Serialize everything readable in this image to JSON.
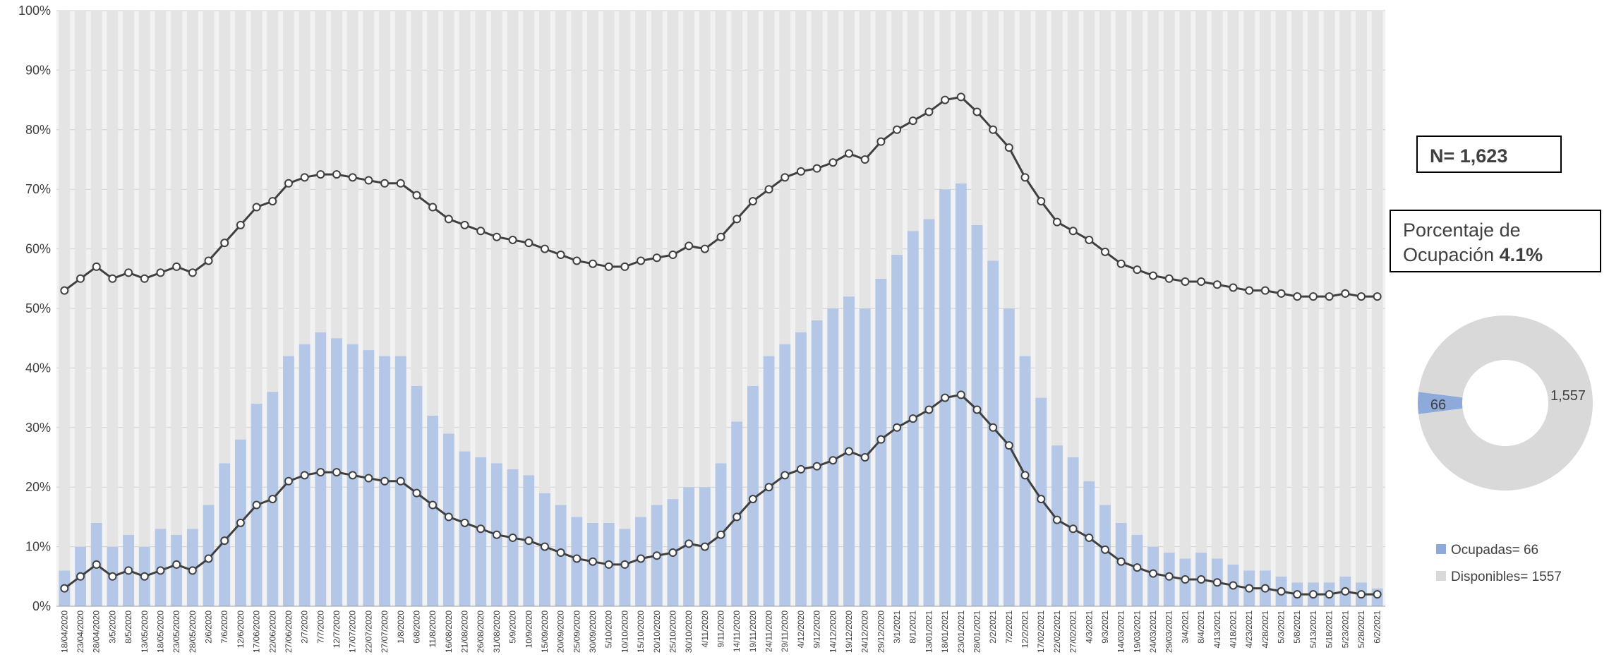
{
  "chart_data": [
    {
      "type": "bar",
      "stacked": true,
      "grid": true,
      "categories": [
        "18/04/2020",
        "23/04/2020",
        "28/04/2020",
        "3/5/2020",
        "8/5/2020",
        "13/05/2020",
        "18/05/2020",
        "23/05/2020",
        "28/05/2020",
        "2/6/2020",
        "7/6/2020",
        "12/6/2020",
        "17/06/2020",
        "22/06/2020",
        "27/06/2020",
        "2/7/2020",
        "7/7/2020",
        "12/7/2020",
        "17/07/2020",
        "22/07/2020",
        "27/07/2020",
        "1/8/2020",
        "6/8/2020",
        "11/8/2020",
        "16/08/2020",
        "21/08/2020",
        "26/08/2020",
        "31/08/2020",
        "5/9/2020",
        "10/9/2020",
        "15/09/2020",
        "20/09/2020",
        "25/09/2020",
        "30/09/2020",
        "5/10/2020",
        "10/10/2020",
        "15/10/2020",
        "20/10/2020",
        "25/10/2020",
        "30/10/2020",
        "4/11/2020",
        "9/11/2020",
        "14/11/2020",
        "19/11/2020",
        "24/11/2020",
        "29/11/2020",
        "4/12/2020",
        "9/12/2020",
        "14/12/2020",
        "19/12/2020",
        "24/12/2020",
        "29/12/2020",
        "3/1/2021",
        "8/1/2021",
        "13/01/2021",
        "18/01/2021",
        "23/01/2021",
        "28/01/2021",
        "2/2/2021",
        "7/2/2021",
        "12/2/2021",
        "17/02/2021",
        "22/02/2021",
        "27/02/2021",
        "4/3/2021",
        "9/3/2021",
        "14/03/2021",
        "19/03/2021",
        "24/03/2021",
        "29/03/2021",
        "3/4/2021",
        "8/4/2021",
        "4/13/2021",
        "4/18/2021",
        "4/23/2021",
        "4/28/2021",
        "5/3/2021",
        "5/8/2021",
        "5/13/2021",
        "5/18/2021",
        "5/23/2021",
        "5/28/2021",
        "6/2/2021"
      ],
      "series": [
        {
          "color": "#b4c7e7",
          "values": [
            6,
            10,
            14,
            10,
            12,
            10,
            13,
            12,
            13,
            17,
            24,
            28,
            34,
            36,
            42,
            44,
            46,
            45,
            44,
            43,
            42,
            42,
            37,
            32,
            29,
            26,
            25,
            24,
            23,
            22,
            19,
            17,
            15,
            14,
            14,
            13,
            15,
            17,
            18,
            20,
            20,
            24,
            31,
            37,
            42,
            44,
            46,
            48,
            50,
            52,
            50,
            55,
            59,
            63,
            65,
            70,
            71,
            64,
            58,
            50,
            42,
            35,
            27,
            25,
            21,
            17,
            14,
            12,
            10,
            9,
            8,
            9,
            8,
            7,
            6,
            6,
            5,
            4,
            4,
            4,
            5,
            4,
            3
          ]
        },
        {
          "color": "#e4e4e4",
          "values": [
            94,
            90,
            86,
            90,
            88,
            90,
            87,
            88,
            87,
            83,
            76,
            72,
            66,
            64,
            58,
            56,
            54,
            55,
            56,
            57,
            58,
            58,
            63,
            68,
            71,
            74,
            75,
            76,
            77,
            78,
            81,
            83,
            85,
            86,
            86,
            87,
            85,
            83,
            82,
            80,
            80,
            76,
            69,
            63,
            58,
            56,
            54,
            52,
            50,
            48,
            50,
            45,
            41,
            37,
            35,
            30,
            29,
            36,
            42,
            50,
            58,
            65,
            73,
            75,
            79,
            83,
            86,
            88,
            90,
            91,
            92,
            91,
            92,
            93,
            94,
            94,
            95,
            96,
            96,
            96,
            95,
            96,
            97
          ]
        }
      ],
      "lines": [
        {
          "color": "#404040",
          "values": [
            53,
            55,
            57,
            55,
            56,
            55,
            56,
            57,
            56,
            58,
            61,
            64,
            67,
            68,
            71,
            72,
            72.5,
            72.5,
            72,
            71.5,
            71,
            71,
            69,
            67,
            65,
            64,
            63,
            62,
            61.5,
            61,
            60,
            59,
            58,
            57.5,
            57,
            57,
            58,
            58.5,
            59,
            60.5,
            60,
            62,
            65,
            68,
            70,
            72,
            73,
            73.5,
            74.5,
            76,
            75,
            78,
            80,
            81.5,
            83,
            85,
            85.5,
            83,
            80,
            77,
            72,
            68,
            64.5,
            63,
            61.5,
            59.5,
            57.5,
            56.5,
            55.5,
            55,
            54.5,
            54.5,
            54,
            53.5,
            53,
            53,
            52.5,
            52,
            52,
            52,
            52.5,
            52,
            52
          ]
        },
        {
          "color": "#404040",
          "values": [
            3,
            5,
            7,
            5,
            6,
            5,
            6,
            7,
            6,
            8,
            11,
            14,
            17,
            18,
            21,
            22,
            22.5,
            22.5,
            22,
            21.5,
            21,
            21,
            19,
            17,
            15,
            14,
            13,
            12,
            11.5,
            11,
            10,
            9,
            8,
            7.5,
            7,
            7,
            8,
            8.5,
            9,
            10.5,
            10,
            12,
            15,
            18,
            20,
            22,
            23,
            23.5,
            24.5,
            26,
            25,
            28,
            30,
            31.5,
            33,
            35,
            35.5,
            33,
            30,
            27,
            22,
            18,
            14.5,
            13,
            11.5,
            9.5,
            7.5,
            6.5,
            5.5,
            5,
            4.5,
            4.5,
            4,
            3.5,
            3,
            3,
            2.5,
            2,
            2,
            2,
            2.5,
            2,
            2
          ]
        }
      ],
      "ylim": [
        0,
        100
      ],
      "yticks": [
        {
          "value": 0,
          "label": "0%"
        },
        {
          "value": 10,
          "label": "10%"
        },
        {
          "value": 20,
          "label": "20%"
        },
        {
          "value": 30,
          "label": "30%"
        },
        {
          "value": 40,
          "label": "40%"
        },
        {
          "value": 50,
          "label": "50%"
        },
        {
          "value": 60,
          "label": "60%"
        },
        {
          "value": 70,
          "label": "70%"
        },
        {
          "value": 80,
          "label": "80%"
        },
        {
          "value": 90,
          "label": "90%"
        },
        {
          "value": 100,
          "label": "100%"
        }
      ]
    },
    {
      "type": "pie",
      "donut": true,
      "categories": [
        "Ocupadas= 66",
        "Disponibles= 1557"
      ],
      "values": [
        66,
        1557
      ],
      "value_labels": [
        "66",
        "1,557"
      ],
      "colors": [
        "#8eaadb",
        "#d9d9d9"
      ],
      "annotations": {
        "n": "N= 1,623",
        "line1": "Porcentaje de",
        "line2": "Ocupación",
        "value": "4.1%"
      }
    }
  ]
}
